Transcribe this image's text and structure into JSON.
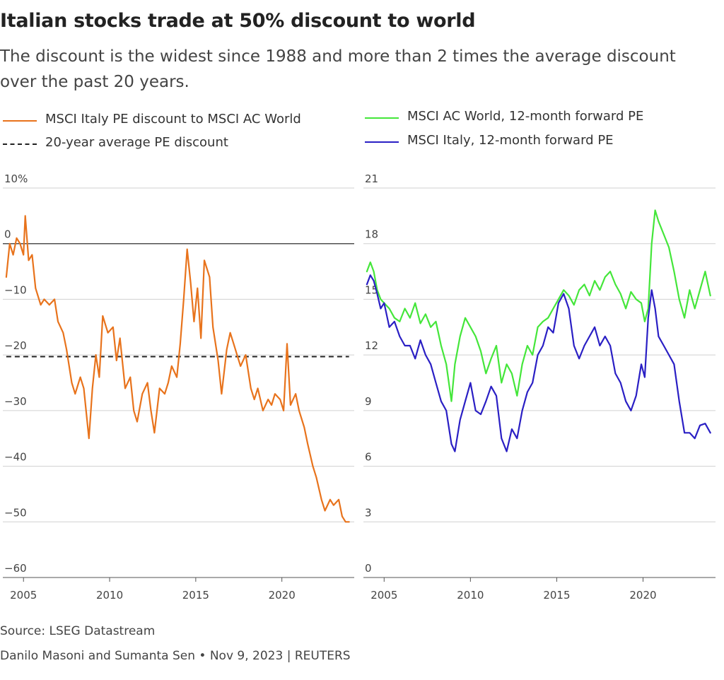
{
  "header": {
    "title": "Italian stocks trade at 50% discount to world",
    "subtitle": "The discount is the widest since 1988 and more than 2 times the average discount over the past 20 years."
  },
  "legend": {
    "left": [
      {
        "label": "MSCI Italy PE discount to MSCI AC World",
        "color": "#e8731c",
        "style": "solid"
      },
      {
        "label": "20-year average PE discount",
        "color": "#222222",
        "style": "dashed"
      }
    ],
    "right": [
      {
        "label": "MSCI AC World, 12-month forward PE",
        "color": "#44e63a",
        "style": "solid"
      },
      {
        "label": "MSCI Italy, 12-month forward PE",
        "color": "#2a1fc4",
        "style": "solid"
      }
    ]
  },
  "footer": {
    "source": "Source: LSEG Datastream",
    "byline": "Danilo Masoni and Sumanta Sen • Nov 9, 2023 | REUTERS"
  },
  "chart_data": [
    {
      "type": "line",
      "ylim": [
        -60,
        10
      ],
      "yticks": [
        10,
        0,
        -10,
        -20,
        -30,
        -40,
        -50,
        -60
      ],
      "ytick_labels": [
        "10%",
        "0",
        "-10",
        "-20",
        "-30",
        "-40",
        "-50",
        "-60"
      ],
      "xlim": [
        2003.8,
        2024.2
      ],
      "xticks": [
        2005,
        2010,
        2015,
        2020
      ],
      "reference_line_y": 0,
      "average_line": {
        "y": -20.3,
        "x_range": [
          2004.0,
          2023.9
        ]
      },
      "series": [
        {
          "name": "MSCI Italy PE discount to MSCI AC World",
          "color": "#e8731c",
          "x": [
            2004.0,
            2004.2,
            2004.4,
            2004.6,
            2004.8,
            2005.0,
            2005.1,
            2005.3,
            2005.5,
            2005.7,
            2006.0,
            2006.2,
            2006.5,
            2006.8,
            2007.0,
            2007.3,
            2007.5,
            2007.8,
            2008.0,
            2008.3,
            2008.5,
            2008.8,
            2009.0,
            2009.2,
            2009.4,
            2009.6,
            2009.9,
            2010.2,
            2010.4,
            2010.6,
            2010.9,
            2011.2,
            2011.4,
            2011.6,
            2011.9,
            2012.2,
            2012.4,
            2012.6,
            2012.9,
            2013.2,
            2013.4,
            2013.6,
            2013.9,
            2014.1,
            2014.3,
            2014.5,
            2014.7,
            2014.9,
            2015.1,
            2015.3,
            2015.5,
            2015.8,
            2016.0,
            2016.3,
            2016.5,
            2016.8,
            2017.0,
            2017.2,
            2017.4,
            2017.6,
            2017.9,
            2018.2,
            2018.4,
            2018.6,
            2018.9,
            2019.2,
            2019.4,
            2019.6,
            2019.9,
            2020.1,
            2020.3,
            2020.5,
            2020.8,
            2021.0,
            2021.3,
            2021.5,
            2021.8,
            2022.0,
            2022.3,
            2022.5,
            2022.8,
            2023.0,
            2023.3,
            2023.5,
            2023.7,
            2023.9
          ],
          "values": [
            -6,
            0,
            -2,
            1,
            0,
            -2,
            5,
            -3,
            -2,
            -8,
            -11,
            -10,
            -11,
            -10,
            -14,
            -16,
            -19,
            -25,
            -27,
            -24,
            -26,
            -35,
            -26,
            -20,
            -24,
            -13,
            -16,
            -15,
            -21,
            -17,
            -26,
            -24,
            -30,
            -32,
            -27,
            -25,
            -30,
            -34,
            -26,
            -27,
            -25,
            -22,
            -24,
            -18,
            -10,
            -1,
            -7,
            -14,
            -8,
            -17,
            -3,
            -6,
            -15,
            -21,
            -27,
            -19,
            -16,
            -18,
            -20,
            -22,
            -20,
            -26,
            -28,
            -26,
            -30,
            -28,
            -29,
            -27,
            -28,
            -30,
            -18,
            -29,
            -27,
            -30,
            -33,
            -36,
            -40,
            -42,
            -46,
            -48,
            -46,
            -47,
            -46,
            -49,
            -50,
            -50
          ]
        }
      ]
    },
    {
      "type": "line",
      "ylim": [
        0,
        21
      ],
      "yticks": [
        21,
        18,
        15,
        12,
        9,
        6,
        3,
        0
      ],
      "xlim": [
        2003.8,
        2024.2
      ],
      "xticks": [
        2005,
        2010,
        2015,
        2020
      ],
      "series": [
        {
          "name": "MSCI AC World, 12-month forward PE",
          "color": "#44e63a",
          "x": [
            2004.0,
            2004.2,
            2004.4,
            2004.6,
            2004.8,
            2005.0,
            2005.3,
            2005.6,
            2005.9,
            2006.2,
            2006.5,
            2006.8,
            2007.1,
            2007.4,
            2007.7,
            2008.0,
            2008.3,
            2008.6,
            2008.9,
            2009.1,
            2009.4,
            2009.7,
            2010.0,
            2010.3,
            2010.6,
            2010.9,
            2011.2,
            2011.5,
            2011.8,
            2012.1,
            2012.4,
            2012.7,
            2013.0,
            2013.3,
            2013.6,
            2013.9,
            2014.2,
            2014.5,
            2014.8,
            2015.1,
            2015.4,
            2015.7,
            2016.0,
            2016.3,
            2016.6,
            2016.9,
            2017.2,
            2017.5,
            2017.8,
            2018.1,
            2018.4,
            2018.7,
            2019.0,
            2019.3,
            2019.6,
            2019.9,
            2020.1,
            2020.3,
            2020.5,
            2020.7,
            2020.9,
            2021.2,
            2021.5,
            2021.8,
            2022.1,
            2022.4,
            2022.7,
            2023.0,
            2023.3,
            2023.6,
            2023.9
          ],
          "values": [
            16.5,
            17,
            16.5,
            15.5,
            15,
            14.8,
            14.5,
            14,
            13.8,
            14.5,
            14,
            14.8,
            13.7,
            14.2,
            13.5,
            13.8,
            12.5,
            11.5,
            9.5,
            11.5,
            13,
            14,
            13.5,
            13,
            12.2,
            11,
            11.8,
            12.5,
            10.5,
            11.5,
            11,
            9.8,
            11.5,
            12.5,
            12,
            13.5,
            13.8,
            14,
            14.5,
            15,
            15.5,
            15.2,
            14.7,
            15.5,
            15.8,
            15.2,
            16,
            15.5,
            16.2,
            16.5,
            15.8,
            15.3,
            14.5,
            15.4,
            15,
            14.8,
            13.8,
            14.5,
            18,
            19.8,
            19.2,
            18.5,
            17.8,
            16.5,
            15,
            14,
            15.5,
            14.5,
            15.5,
            16.5,
            15.2
          ]
        },
        {
          "name": "MSCI Italy, 12-month forward PE",
          "color": "#2a1fc4",
          "x": [
            2004.0,
            2004.2,
            2004.4,
            2004.6,
            2004.8,
            2005.0,
            2005.3,
            2005.6,
            2005.9,
            2006.2,
            2006.5,
            2006.8,
            2007.1,
            2007.4,
            2007.7,
            2008.0,
            2008.3,
            2008.6,
            2008.9,
            2009.1,
            2009.4,
            2009.7,
            2010.0,
            2010.3,
            2010.6,
            2010.9,
            2011.2,
            2011.5,
            2011.8,
            2012.1,
            2012.4,
            2012.7,
            2013.0,
            2013.3,
            2013.6,
            2013.9,
            2014.2,
            2014.5,
            2014.8,
            2015.1,
            2015.4,
            2015.7,
            2016.0,
            2016.3,
            2016.6,
            2016.9,
            2017.2,
            2017.5,
            2017.8,
            2018.1,
            2018.4,
            2018.7,
            2019.0,
            2019.3,
            2019.6,
            2019.9,
            2020.1,
            2020.3,
            2020.5,
            2020.7,
            2020.9,
            2021.2,
            2021.5,
            2021.8,
            2022.1,
            2022.4,
            2022.7,
            2023.0,
            2023.3,
            2023.6,
            2023.9
          ],
          "values": [
            15.8,
            16.3,
            16,
            15.3,
            14.5,
            14.8,
            13.5,
            13.8,
            13,
            12.5,
            12.5,
            11.8,
            12.8,
            12,
            11.5,
            10.5,
            9.5,
            9,
            7.2,
            6.8,
            8.5,
            9.5,
            10.5,
            9,
            8.8,
            9.5,
            10.3,
            9.8,
            7.5,
            6.8,
            8,
            7.5,
            9,
            10,
            10.5,
            12,
            12.5,
            13.5,
            13.2,
            14.8,
            15.3,
            14.5,
            12.5,
            11.8,
            12.5,
            13,
            13.5,
            12.5,
            13,
            12.5,
            11,
            10.5,
            9.5,
            9,
            9.8,
            11.5,
            10.8,
            14,
            15.5,
            14.5,
            13,
            12.5,
            12,
            11.5,
            9.5,
            7.8,
            7.8,
            7.5,
            8.2,
            8.3,
            7.8
          ]
        }
      ]
    }
  ]
}
